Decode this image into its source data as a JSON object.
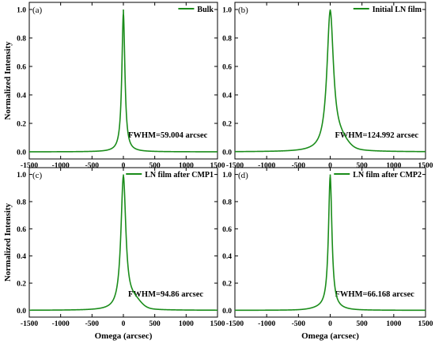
{
  "chart_data": [
    {
      "type": "line",
      "panel": "(a)",
      "legend": "Bulk",
      "annotation": "FWHM=59.004 arcsec",
      "xlabel": "",
      "ylabel": "Normalized Intensity",
      "xlim": [
        -1500,
        1500
      ],
      "ylim": [
        -0.05,
        1.05
      ],
      "xticks": [
        "-1500",
        "-1000",
        "-500",
        "0",
        "500",
        "1000",
        "1500"
      ],
      "yticks": [
        "0.0",
        "0.2",
        "0.4",
        "0.6",
        "0.8",
        "1.0"
      ],
      "color": "#1a8c1a",
      "peak": {
        "center": 0,
        "fwhm": 59.004,
        "shoulder": 0,
        "shoulder_center": 150,
        "shoulder_width": 120
      }
    },
    {
      "type": "line",
      "panel": "(b)",
      "legend": "Initial LN film",
      "annotation": "FWHM=124.992 arcsec",
      "xlabel": "",
      "ylabel": "",
      "xlim": [
        -1500,
        1500
      ],
      "ylim": [
        -0.05,
        1.05
      ],
      "xticks": [
        "-1500",
        "-1000",
        "-500",
        "0",
        "500",
        "1000",
        "1500"
      ],
      "yticks": [
        "0.0",
        "0.2",
        "0.4",
        "0.6",
        "0.8",
        "1.0"
      ],
      "color": "#1a8c1a",
      "peak": {
        "center": 0,
        "fwhm": 124.992,
        "shoulder": 0.06,
        "shoulder_center": 160,
        "shoulder_width": 160
      }
    },
    {
      "type": "line",
      "panel": "(c)",
      "legend": "LN film after CMP1",
      "annotation": "FWHM=94.86 arcsec",
      "xlabel": "Omega (arcsec)",
      "ylabel": "Normalized Intensity",
      "xlim": [
        -1500,
        1500
      ],
      "ylim": [
        -0.05,
        1.05
      ],
      "xticks": [
        "-1500",
        "-1000",
        "-500",
        "0",
        "500",
        "1000",
        "1500"
      ],
      "yticks": [
        "0.0",
        "0.2",
        "0.4",
        "0.6",
        "0.8",
        "1.0"
      ],
      "color": "#1a8c1a",
      "peak": {
        "center": 0,
        "fwhm": 94.86,
        "shoulder": 0.06,
        "shoulder_center": 170,
        "shoulder_width": 150
      }
    },
    {
      "type": "line",
      "panel": "(d)",
      "legend": "LN film after CMP2",
      "annotation": "FWHM=66.168 arcsec",
      "xlabel": "Omega (arcsec)",
      "ylabel": "",
      "xlim": [
        -1500,
        1500
      ],
      "ylim": [
        -0.05,
        1.05
      ],
      "xticks": [
        "-1500",
        "-1000",
        "-500",
        "0",
        "500",
        "1000",
        "1500"
      ],
      "yticks": [
        "0.0",
        "0.2",
        "0.4",
        "0.6",
        "0.8",
        "1.0"
      ],
      "color": "#1a8c1a",
      "peak": {
        "center": 0,
        "fwhm": 66.168,
        "shoulder": 0.015,
        "shoulder_center": -60,
        "shoulder_width": 250
      }
    }
  ]
}
